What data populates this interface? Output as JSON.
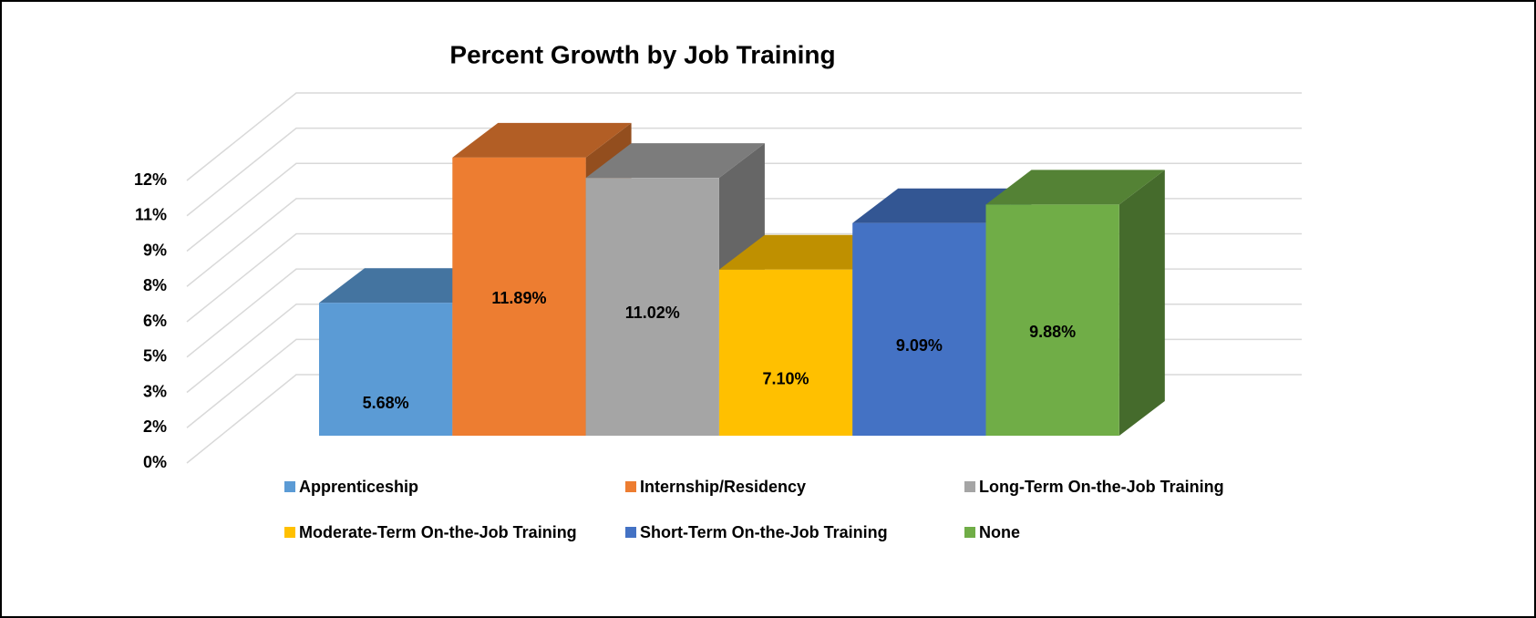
{
  "chart_data": {
    "type": "bar3d",
    "title": "Percent Growth by Job Training",
    "series": [
      {
        "name": "Apprenticeship",
        "color": "#5b9bd5",
        "values": [
          5.68
        ],
        "value_labels": [
          "5.68%"
        ]
      },
      {
        "name": "Internship/Residency",
        "color": "#ed7d31",
        "values": [
          11.89
        ],
        "value_labels": [
          "11.89%"
        ]
      },
      {
        "name": "Long-Term On-the-Job Training",
        "color": "#a5a5a5",
        "values": [
          11.02
        ],
        "value_labels": [
          "11.02%"
        ]
      },
      {
        "name": "Moderate-Term On-the-Job Training",
        "color": "#ffc000",
        "values": [
          7.1
        ],
        "value_labels": [
          "7.10%"
        ]
      },
      {
        "name": "Short-Term On-the-Job Training",
        "color": "#4472c4",
        "values": [
          9.09
        ],
        "value_labels": [
          "9.09%"
        ]
      },
      {
        "name": "None",
        "color": "#70ad47",
        "values": [
          9.88
        ],
        "value_labels": [
          "9.88%"
        ]
      }
    ],
    "ylim": [
      0,
      12
    ],
    "yticks": [
      {
        "value": 0,
        "label": "0%"
      },
      {
        "value": 1.5,
        "label": "2%"
      },
      {
        "value": 3,
        "label": "3%"
      },
      {
        "value": 4.5,
        "label": "5%"
      },
      {
        "value": 6,
        "label": "6%"
      },
      {
        "value": 7.5,
        "label": "8%"
      },
      {
        "value": 9,
        "label": "9%"
      },
      {
        "value": 10.5,
        "label": "11%"
      },
      {
        "value": 12,
        "label": "12%"
      }
    ],
    "grid": true,
    "legend": "bottom"
  }
}
